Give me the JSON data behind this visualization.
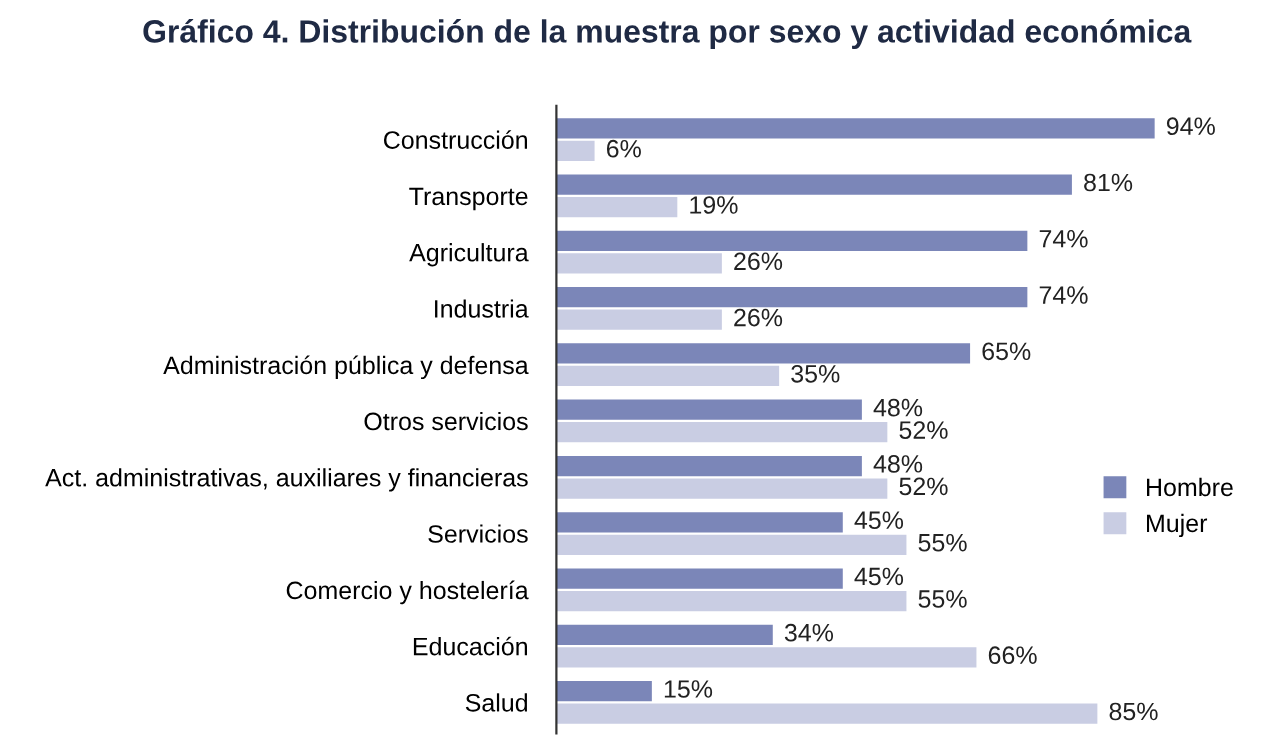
{
  "chart_data": {
    "type": "bar",
    "orientation": "horizontal",
    "title": "Gráfico 4. Distribución de la muestra por sexo y actividad económica",
    "categories": [
      "Construcción",
      "Transporte",
      "Agricultura",
      "Industria",
      "Administración pública y defensa",
      "Otros servicios",
      "Act. administrativas, auxiliares y financieras",
      "Servicios",
      "Comercio y hostelería",
      "Educación",
      "Salud"
    ],
    "series": [
      {
        "name": "Hombre",
        "color": "#7b86b8",
        "values": [
          94,
          81,
          74,
          74,
          65,
          48,
          48,
          45,
          45,
          34,
          15
        ],
        "value_labels": [
          "94%",
          "81%",
          "74%",
          "74%",
          "65%",
          "48%",
          "48%",
          "45%",
          "45%",
          "34%",
          "15%"
        ]
      },
      {
        "name": "Mujer",
        "color": "#c9cde3",
        "values": [
          6,
          19,
          26,
          26,
          35,
          52,
          52,
          55,
          55,
          66,
          85
        ],
        "value_labels": [
          "6%",
          "19%",
          "26%",
          "26%",
          "35%",
          "52%",
          "52%",
          "55%",
          "55%",
          "66%",
          "85%"
        ]
      }
    ],
    "legend": "right",
    "grid": false
  }
}
